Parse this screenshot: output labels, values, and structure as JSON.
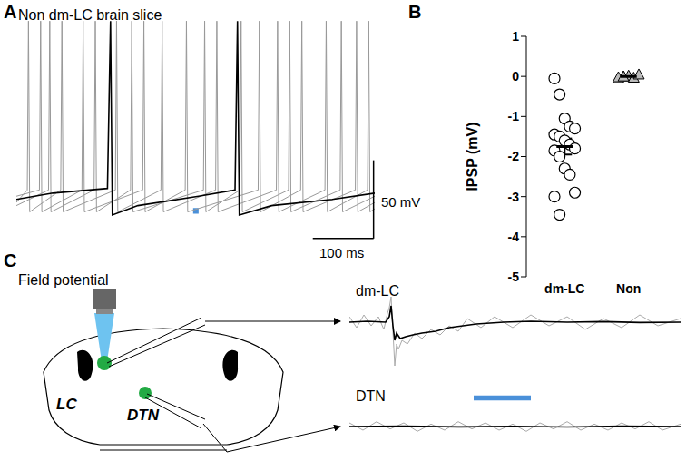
{
  "panel_labels": [
    "A",
    "B",
    "C"
  ],
  "diagram": {
    "title": "Field potential",
    "labels": [
      "LC",
      "DTN"
    ]
  },
  "chart_data": [
    {
      "type": "line",
      "title": "Non dm-LC brain slice",
      "tick_labels": false,
      "xlim": [
        0,
        590
      ],
      "ylim": [
        -90,
        55
      ],
      "stimulus": {
        "x": [
          291,
          300
        ],
        "color": "#4a90d9"
      },
      "scale_bars": [
        {
          "axis": "y",
          "value": 50,
          "label": "50 mV"
        },
        {
          "axis": "x",
          "value": 100,
          "label": "100 ms"
        }
      ],
      "series": [
        {
          "color": "#999999",
          "x": [
            0,
            38,
            40,
            42,
            108,
            110,
            112,
            208,
            210,
            212,
            278,
            280,
            282,
            398,
            400,
            402,
            468,
            470,
            472,
            558,
            560,
            562,
            590
          ],
          "values": [
            -60,
            -56,
            52,
            -70,
            -56,
            52,
            -70,
            -56,
            52,
            -70,
            -56,
            52,
            -70,
            -56,
            52,
            -70,
            -56,
            52,
            -70,
            -56,
            52,
            -70,
            -64
          ]
        },
        {
          "color": "#999999",
          "x": [
            0,
            18,
            20,
            22,
            73,
            75,
            77,
            163,
            165,
            167,
            238,
            240,
            242,
            328,
            330,
            332,
            428,
            430,
            432,
            508,
            510,
            512,
            578,
            580,
            582,
            590
          ],
          "values": [
            -64,
            -56,
            52,
            -70,
            -56,
            52,
            -70,
            -56,
            52,
            -70,
            -56,
            52,
            -70,
            -56,
            52,
            -70,
            -56,
            52,
            -70,
            -56,
            52,
            -70,
            -56,
            52,
            -70,
            -68
          ]
        },
        {
          "color": "#999999",
          "x": [
            0,
            53,
            55,
            57,
            128,
            130,
            132,
            188,
            190,
            192,
            308,
            310,
            312,
            368,
            370,
            372,
            448,
            450,
            452,
            533,
            535,
            537,
            590
          ],
          "values": [
            -66,
            -56,
            52,
            -70,
            -56,
            52,
            -70,
            -56,
            52,
            -70,
            -56,
            52,
            -70,
            -56,
            52,
            -70,
            -56,
            52,
            -70,
            -56,
            52,
            -70,
            -60
          ]
        },
        {
          "color": "#000000",
          "x": [
            0,
            60,
            150,
            155,
            158,
            200,
            300,
            360,
            364,
            367,
            420,
            520,
            590
          ],
          "values": [
            -62,
            -58,
            -55,
            52,
            -72,
            -66,
            -60,
            -56,
            52,
            -72,
            -66,
            -62,
            -58
          ]
        }
      ]
    },
    {
      "type": "scatter",
      "ylabel": "IPSP (mV)",
      "categories": [
        "dm-LC",
        "Non"
      ],
      "ylim": [
        -5,
        1
      ],
      "yticks": [
        -5,
        -4,
        -3,
        -2,
        -1,
        0,
        1
      ],
      "groups": [
        {
          "values": [
            -0.05,
            -0.45,
            -1.05,
            -1.25,
            -1.3,
            -1.45,
            -1.5,
            -1.6,
            -1.7,
            -1.8,
            -1.85,
            -2.0,
            -2.3,
            -2.45,
            -2.9,
            -3.0,
            -3.45
          ],
          "mean": -1.75,
          "sem": 0.2,
          "marker": "circle",
          "color": "#ffffff"
        },
        {
          "values": [
            -0.05,
            0.0,
            0.02,
            -0.03,
            0.05,
            -0.02,
            0.0
          ],
          "mean": 0,
          "sem": 0.02,
          "marker": "triangle",
          "color": "#bbbbbb"
        }
      ]
    },
    {
      "type": "line",
      "title": "dm-LC",
      "tick_labels": false,
      "xlim": [
        0,
        365
      ],
      "ylim": [
        -45,
        17.5
      ],
      "stimulus": {
        "x": [
          137,
          200
        ],
        "color": "#4a90d9"
      },
      "series": [
        {
          "color": "#aaaaaa",
          "x": [
            0,
            8,
            16,
            24,
            32,
            38,
            42,
            44,
            46,
            48,
            50,
            52,
            54,
            58,
            64,
            72,
            80,
            90,
            100,
            110,
            120,
            130,
            145,
            160,
            180,
            200,
            220,
            240,
            260,
            280,
            300,
            320,
            340,
            365
          ],
          "values": [
            3,
            -3,
            4,
            -2,
            3,
            -4,
            5,
            8,
            14,
            -5,
            -24,
            -12,
            -15,
            -10,
            -12,
            -6,
            -9,
            -4,
            -7,
            -2,
            -5,
            2,
            -3,
            3,
            -3,
            4,
            -2,
            3,
            -4,
            2,
            -3,
            4,
            -2,
            2
          ]
        },
        {
          "color": "#000000",
          "x": [
            0,
            20,
            40,
            44,
            46,
            48,
            50,
            52,
            56,
            62,
            70,
            80,
            95,
            110,
            125,
            140,
            170,
            200,
            240,
            280,
            320,
            365
          ],
          "values": [
            0,
            0.5,
            0,
            3,
            9,
            -2,
            -10,
            -6,
            -9,
            -8,
            -7,
            -6,
            -5,
            -3,
            -2,
            -1,
            0,
            0.5,
            0,
            0.3,
            -0.2,
            0
          ]
        }
      ]
    },
    {
      "type": "line",
      "title": "DTN",
      "tick_labels": false,
      "xlim": [
        0,
        365
      ],
      "ylim": [
        -15,
        15
      ],
      "series": [
        {
          "color": "#aaaaaa",
          "x": [
            0,
            15,
            30,
            45,
            60,
            75,
            90,
            105,
            120,
            135,
            150,
            165,
            180,
            195,
            210,
            225,
            240,
            255,
            270,
            285,
            300,
            315,
            330,
            345,
            365
          ],
          "values": [
            3,
            -3,
            4,
            -2,
            3,
            -4,
            2,
            -3,
            4,
            -2,
            3,
            -3,
            2,
            -4,
            3,
            -2,
            4,
            -3,
            2,
            -3,
            3,
            -2,
            4,
            -3,
            2
          ]
        },
        {
          "color": "#000000",
          "x": [
            0,
            60,
            120,
            180,
            240,
            300,
            365
          ],
          "values": [
            0,
            0.4,
            -0.3,
            0.2,
            -0.4,
            0.3,
            0
          ]
        }
      ]
    }
  ]
}
